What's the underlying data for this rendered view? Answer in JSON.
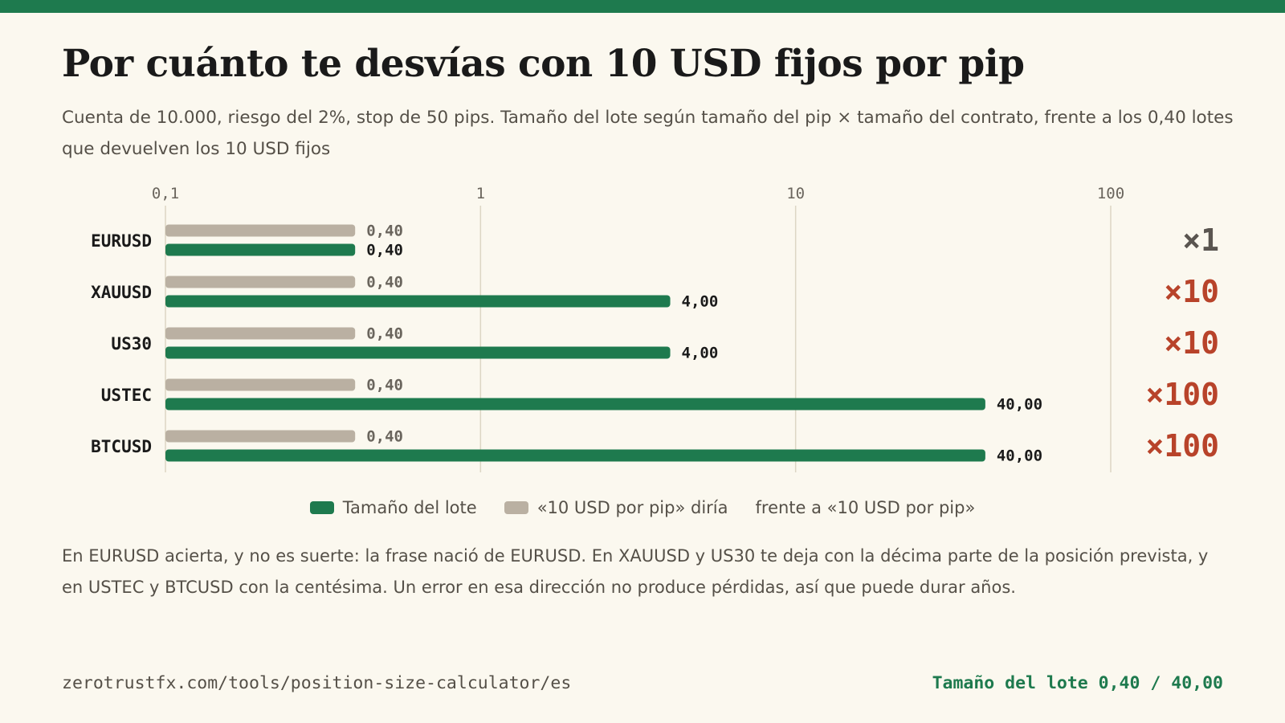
{
  "title": "Por cuánto te desvías con 10 USD fijos por pip",
  "subtitle": "Cuenta de 10.000, riesgo del 2%, stop de 50 pips. Tamaño del lote según tamaño del pip × tamaño del contrato, frente a los 0,40 lotes que devuelven los 10 USD fijos",
  "note": "En EURUSD acierta, y no es suerte: la frase nació de EURUSD. En XAUUSD y US30 te deja con la décima parte de la posición prevista, y en USTEC y BTCUSD con la centésima. Un error en esa dirección no produce pérdidas, así que puede durar años.",
  "footer": {
    "url": "zerotrustfx.com/tools/position-size-calculator/es",
    "tag": "Tamaño del lote 0,40 / 40,00"
  },
  "legend": {
    "lot": "Tamaño del lote",
    "rule": "«10 USD por pip» diría",
    "ratio": "frente a «10 USD por pip»"
  },
  "colors": {
    "lot": "#1e7a4e",
    "rule": "#bab0a2",
    "ratio_neutral": "#5a5550",
    "ratio_alert": "#b8432a"
  },
  "chart_data": {
    "type": "bar",
    "orientation": "horizontal",
    "x_scale": "log",
    "xlim": [
      0.1,
      100
    ],
    "x_ticks": [
      {
        "value": 0.1,
        "label": "0,1"
      },
      {
        "value": 1,
        "label": "1"
      },
      {
        "value": 10,
        "label": "10"
      },
      {
        "value": 100,
        "label": "100"
      }
    ],
    "grid": true,
    "legend_position": "bottom",
    "categories": [
      "EURUSD",
      "XAUUSD",
      "US30",
      "USTEC",
      "BTCUSD"
    ],
    "series": [
      {
        "name": "«10 USD por pip» diría",
        "key": "rule",
        "values": [
          0.4,
          0.4,
          0.4,
          0.4,
          0.4
        ],
        "labels": [
          "0,40",
          "0,40",
          "0,40",
          "0,40",
          "0,40"
        ]
      },
      {
        "name": "Tamaño del lote",
        "key": "lot",
        "values": [
          0.4,
          4,
          4,
          40,
          40
        ],
        "labels": [
          "0,40",
          "4,00",
          "4,00",
          "40,00",
          "40,00"
        ]
      }
    ],
    "ratios": [
      "×1",
      "×10",
      "×10",
      "×100",
      "×100"
    ]
  }
}
